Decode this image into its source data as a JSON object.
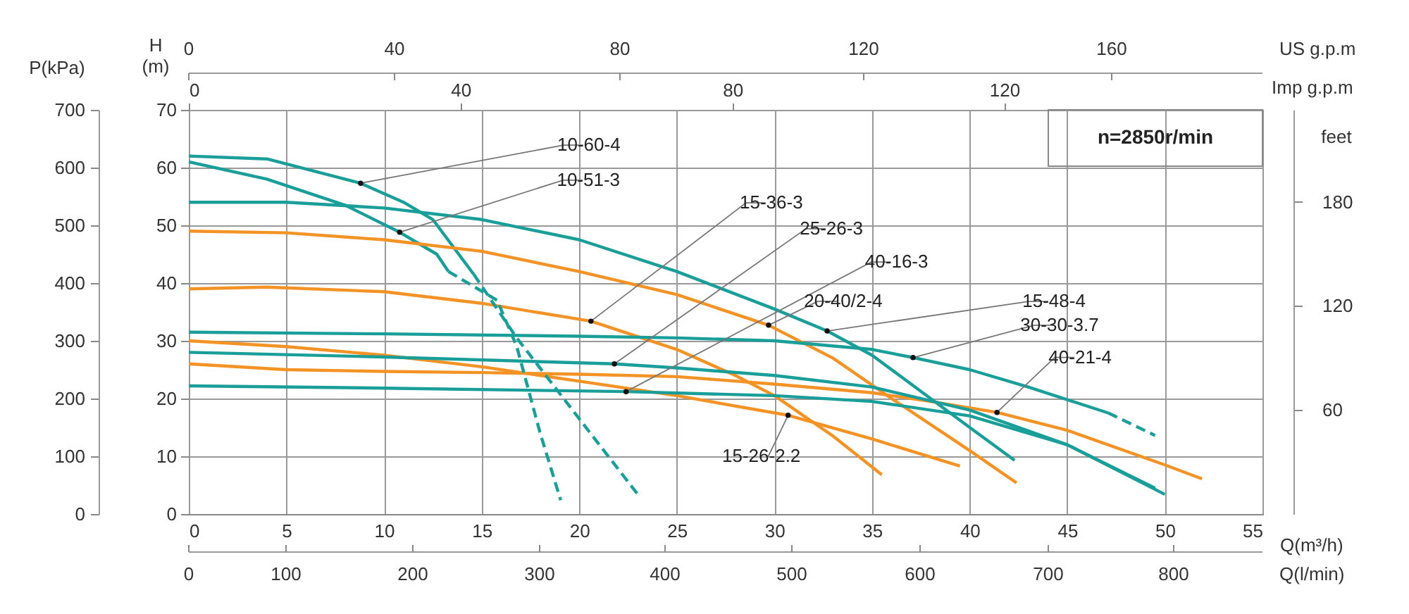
{
  "chart_data": {
    "type": "line",
    "xlabel": "Q(m³/h)",
    "ylabel": "H (m)",
    "y2label": "feet",
    "y3label": "P(kPa)",
    "x2label": "Imp g.p.m",
    "xlim": [
      0,
      55
    ],
    "xticks": [
      0,
      5,
      10,
      15,
      20,
      25,
      30,
      35,
      40,
      45,
      50,
      55
    ],
    "ylim": [
      0,
      70
    ],
    "yticks": [
      0,
      10,
      20,
      30,
      40,
      50,
      60,
      70
    ],
    "y2lim": [
      0,
      233
    ],
    "y2ticks": [
      60,
      120,
      180
    ],
    "y3lim": [
      0,
      700
    ],
    "y3ticks": [
      0,
      100,
      200,
      300,
      400,
      500,
      600,
      700
    ],
    "x2lim": [
      0,
      158
    ],
    "x2ticks": [
      0,
      40,
      80,
      120
    ],
    "grid": true,
    "legend": false,
    "line_style": "solid",
    "series": [
      {
        "color": "#1a9e9a",
        "x": [
          0,
          4,
          8.8,
          11,
          12.5,
          14.6
        ],
        "values": [
          62,
          61.5,
          57.3,
          54,
          51,
          41.5
        ]
      },
      {
        "color": "#1a9e9a",
        "line_style": "dashed",
        "x": [
          14.6,
          16.8,
          20,
          23
        ],
        "values": [
          41.5,
          30.5,
          16.5,
          3.4
        ]
      },
      {
        "color": "#1a9e9a",
        "x": [
          0,
          4,
          8,
          10.8,
          12.7,
          13.3
        ],
        "values": [
          61,
          58,
          53.5,
          48.8,
          45,
          42
        ]
      },
      {
        "color": "#1a9e9a",
        "line_style": "dashed",
        "x": [
          13.3,
          15.8,
          16.8,
          18,
          19.05
        ],
        "values": [
          42,
          37,
          29,
          14,
          2.4
        ]
      },
      {
        "color": "#1a9e9a",
        "x": [
          0,
          5,
          10,
          15,
          20,
          25,
          30,
          32.7,
          35,
          38,
          40,
          42.3
        ],
        "values": [
          54,
          54,
          53,
          51,
          47.5,
          42,
          35.5,
          31.7,
          27.5,
          20,
          15,
          9.3
        ]
      },
      {
        "color": "#f39325",
        "x": [
          0,
          5,
          10,
          15,
          20,
          25,
          29.7,
          33,
          36,
          40,
          42.4
        ],
        "values": [
          49,
          48.7,
          47.5,
          45.5,
          42,
          38,
          32.7,
          27,
          20,
          11,
          5.4
        ]
      },
      {
        "color": "#f39325",
        "x": [
          0,
          4,
          10,
          15,
          20.6,
          25,
          28,
          30,
          33,
          35.5
        ],
        "values": [
          39,
          39.3,
          38.5,
          36.5,
          33.4,
          28.5,
          24,
          20.5,
          13.5,
          6.8
        ]
      },
      {
        "color": "#f39325",
        "x": [
          0,
          5,
          10,
          15,
          20,
          25,
          30.7,
          35,
          39.5
        ],
        "values": [
          30,
          29,
          27.5,
          25.5,
          23,
          20.5,
          17.1,
          13,
          8.3
        ]
      },
      {
        "color": "#f39325",
        "x": [
          0,
          5,
          10,
          15,
          20,
          25,
          30,
          35,
          38,
          41.4,
          45,
          50,
          51.9
        ],
        "values": [
          26,
          25,
          24.7,
          24.5,
          24.2,
          23.8,
          22.5,
          21,
          19.5,
          17.6,
          14.5,
          8.5,
          6.1
        ]
      },
      {
        "color": "#1a9e9a",
        "x": [
          0,
          10,
          20,
          25,
          30,
          35,
          37.1,
          40,
          43,
          47.1
        ],
        "values": [
          31.5,
          31.2,
          30.8,
          30.5,
          30,
          28.5,
          27.1,
          25,
          22,
          17.5
        ]
      },
      {
        "color": "#1a9e9a",
        "line_style": "dashed",
        "x": [
          47.1,
          49.5
        ],
        "values": [
          17.5,
          13.6
        ]
      },
      {
        "color": "#1a9e9a",
        "x": [
          0,
          10,
          21.8,
          25,
          30,
          35,
          40,
          45,
          49.5
        ],
        "values": [
          28,
          27.2,
          26,
          25.3,
          24,
          22,
          18,
          12,
          4.5
        ]
      },
      {
        "color": "#1a9e9a",
        "x": [
          0,
          10,
          22.4,
          30,
          35,
          40,
          45,
          50
        ],
        "values": [
          22.2,
          21.8,
          21.2,
          20.5,
          19.5,
          17,
          12,
          3.4
        ]
      }
    ],
    "annotations": [
      {
        "text": "10-60-4",
        "x": 8.8,
        "y": 57.3
      },
      {
        "text": "10-51-3",
        "x": 10.8,
        "y": 48.8
      },
      {
        "text": "15-36-3",
        "x": 20.6,
        "y": 33.4
      },
      {
        "text": "25-26-3",
        "x": 21.8,
        "y": 26
      },
      {
        "text": "40-16-3",
        "x": 22.4,
        "y": 21.2
      },
      {
        "text": "20-40/2-4",
        "x": 29.7,
        "y": 32.7
      },
      {
        "text": "15-48-4",
        "x": 32.7,
        "y": 31.7
      },
      {
        "text": "30-30-3.7",
        "x": 37.1,
        "y": 27.1
      },
      {
        "text": "40-21-4",
        "x": 41.4,
        "y": 17.6
      },
      {
        "text": "15-26-2.2",
        "x": 30.7,
        "y": 17.1
      },
      "0",
      "40",
      "80",
      "120",
      "160",
      "US g.p.m",
      "0",
      "100",
      "200",
      "300",
      "400",
      "500",
      "600",
      "700",
      "800",
      "Q(l/min)",
      "n=2850r/min"
    ]
  }
}
